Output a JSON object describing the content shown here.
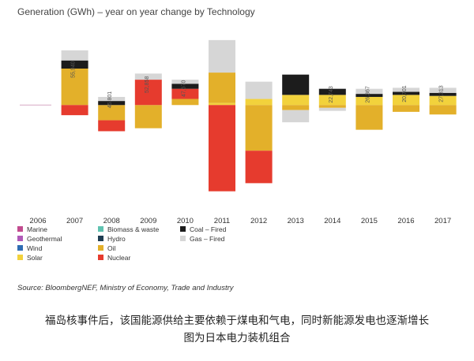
{
  "chart_data": {
    "type": "bar",
    "title": "Generation (GWh) – year on year change by Technology",
    "categories": [
      "2006",
      "2007",
      "2008",
      "2009",
      "2010",
      "2011",
      "2012",
      "2013",
      "2014",
      "2015",
      "2016",
      "2017"
    ],
    "bar_labels": [
      "",
      "55,940",
      "45,801",
      "52,858",
      "47,670",
      "",
      "",
      "",
      "22,743",
      "26,367",
      "20,701",
      "27,313"
    ],
    "ylim": [
      -100000,
      74000
    ],
    "legend_placement": "bottom-left",
    "series": [
      {
        "name": "Marine",
        "color": "#c24b8f",
        "values": [
          0,
          0,
          0,
          0,
          0,
          0,
          0,
          0,
          0,
          0,
          0,
          0
        ]
      },
      {
        "name": "Geothermal",
        "color": "#b05ab8",
        "values": [
          0,
          0,
          0,
          0,
          0,
          0,
          0,
          0,
          0,
          0,
          0,
          0
        ]
      },
      {
        "name": "Wind",
        "color": "#2f6db3",
        "values": [
          0,
          0,
          0,
          0,
          0,
          0,
          0,
          0,
          0,
          0,
          0,
          0
        ]
      },
      {
        "name": "Solar",
        "color": "#f2d23c",
        "values": [
          0,
          0,
          0,
          0,
          0,
          2000,
          6000,
          10000,
          10000,
          8000,
          10000,
          9000
        ]
      },
      {
        "name": "Biomass & waste",
        "color": "#5fc2b0",
        "values": [
          0,
          0,
          0,
          0,
          0,
          0,
          0,
          0,
          0,
          0,
          0,
          0
        ]
      },
      {
        "name": "Hydro",
        "color": "#1f3d52",
        "values": [
          0,
          0,
          0,
          0,
          0,
          0,
          0,
          0,
          0,
          0,
          0,
          0
        ]
      },
      {
        "name": "Oil",
        "color": "#e3b02a",
        "values": [
          0,
          35940,
          -15000,
          -22858,
          6000,
          30000,
          -45000,
          -5000,
          -2743,
          -24367,
          -6701,
          -9313
        ]
      },
      {
        "name": "Nuclear",
        "color": "#e63b2e",
        "values": [
          0,
          -10000,
          -10801,
          25000,
          10000,
          -85000,
          -32000,
          0,
          0,
          0,
          0,
          0
        ]
      },
      {
        "name": "Coal – Fired",
        "color": "#1c1c1c",
        "values": [
          0,
          8000,
          4000,
          0,
          5000,
          0,
          0,
          20000,
          6000,
          3000,
          3000,
          3000
        ]
      },
      {
        "name": "Gas – Fired",
        "color": "#d6d6d6",
        "values": [
          0,
          10000,
          4000,
          6000,
          4000,
          32000,
          17000,
          -12000,
          -3000,
          5000,
          4000,
          5000
        ]
      }
    ]
  },
  "legend": {
    "col1": [
      "Marine",
      "Geothermal",
      "Wind",
      "Solar"
    ],
    "col2": [
      "Biomass & waste",
      "Hydro",
      "Oil",
      "Nuclear"
    ],
    "col3": [
      "Coal – Fired",
      "Gas – Fired"
    ]
  },
  "source": "Source: BloombergNEF, Ministry of Economy, Trade and Industry",
  "caption_line1": "福岛核事件后，该国能源供给主要依赖于煤电和气电，同时新能源发电也逐渐增长",
  "caption_line2": "图为日本电力装机组合"
}
